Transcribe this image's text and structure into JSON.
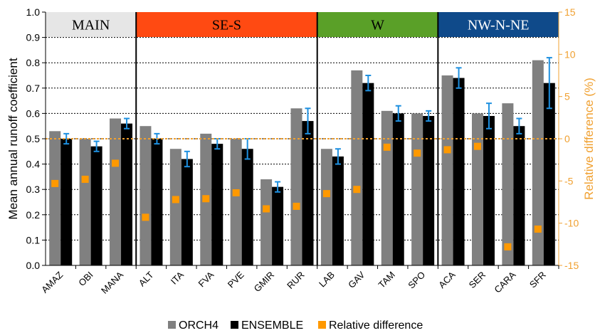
{
  "chart_data": {
    "type": "bar",
    "categories": [
      "AMAZ",
      "OBI",
      "MANA",
      "ALT",
      "ITA",
      "FVA",
      "PVE",
      "GMIR",
      "RUR",
      "LAB",
      "GAV",
      "TAM",
      "SPO",
      "ACA",
      "SER",
      "CARA",
      "SFR"
    ],
    "series": [
      {
        "name": "ORCH4",
        "color": "#808080",
        "values": [
          0.53,
          0.5,
          0.58,
          0.55,
          0.46,
          0.52,
          0.5,
          0.34,
          0.62,
          0.46,
          0.77,
          0.61,
          0.6,
          0.75,
          0.6,
          0.64,
          0.81
        ]
      },
      {
        "name": "ENSEMBLE",
        "color": "#000000",
        "values": [
          0.5,
          0.47,
          0.56,
          0.5,
          0.42,
          0.48,
          0.46,
          0.31,
          0.57,
          0.43,
          0.72,
          0.6,
          0.59,
          0.74,
          0.59,
          0.55,
          0.72
        ],
        "error": [
          0.02,
          0.02,
          0.02,
          0.02,
          0.03,
          0.02,
          0.04,
          0.02,
          0.05,
          0.03,
          0.03,
          0.03,
          0.02,
          0.04,
          0.05,
          0.03,
          0.1
        ]
      },
      {
        "name": "Relative difference",
        "color": "#ff9900",
        "axis": "right",
        "values": [
          -5.3,
          -4.8,
          -2.9,
          -9.3,
          -7.2,
          -7.1,
          -6.4,
          -8.3,
          -8.0,
          -6.5,
          -6.0,
          -1.0,
          -1.7,
          -1.3,
          -0.9,
          -12.8,
          -10.7
        ]
      }
    ],
    "regions": [
      {
        "name": "MAIN",
        "start": 0,
        "end": 2,
        "color": "#e6e6e6",
        "text_color": "#000000"
      },
      {
        "name": "SE-S",
        "start": 3,
        "end": 8,
        "color": "#ff4a12",
        "text_color": "#000000"
      },
      {
        "name": "W",
        "start": 9,
        "end": 12,
        "color": "#5aa028",
        "text_color": "#000000"
      },
      {
        "name": "NW-N-NE",
        "start": 13,
        "end": 16,
        "color": "#0f4a8a",
        "text_color": "#ffffff"
      }
    ],
    "ylabel": "Mean annual runoff coefficient",
    "ylabel_right": "Relative difference (%)",
    "ylim": [
      0,
      1.0
    ],
    "yticks": [
      "0.0",
      "0.1",
      "0.2",
      "0.3",
      "0.4",
      "0.5",
      "0.6",
      "0.7",
      "0.8",
      "0.9",
      "1.0"
    ],
    "ylim_right": [
      -15,
      15
    ],
    "yticks_right": [
      "-15",
      "-10",
      "-5",
      "0",
      "5",
      "10",
      "15"
    ],
    "reference_line_right": 0,
    "grid": true,
    "legend": "bottom",
    "right_axis_color": "#f0a030"
  }
}
